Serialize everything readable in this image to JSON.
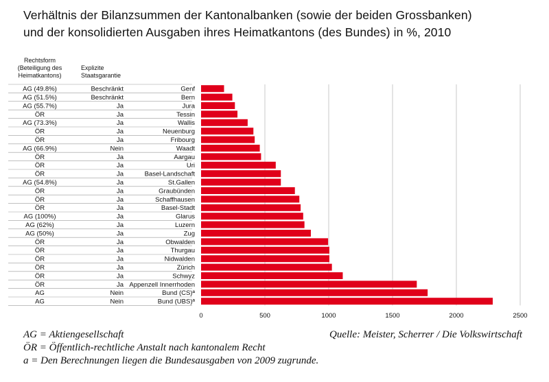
{
  "title": {
    "line1": "Verhältnis der Bilanzsummen der Kantonalbanken (sowie der beiden Grossbanken)",
    "line2": "und der konsolidierten Ausgaben ihres Heimatkantons (des Bundes) in %, 2010"
  },
  "headers": {
    "rechtsform": [
      "Rechtsform",
      "(Beteiligung des",
      "Heimatkantons)"
    ],
    "garantie": [
      "Explizite",
      "Staatsgarantie"
    ]
  },
  "chart_data": {
    "type": "bar",
    "orientation": "horizontal",
    "bar_color": "#e0001a",
    "grid": true,
    "xlim": [
      0,
      2500
    ],
    "xticks": [
      "0",
      "500",
      "1000",
      "1500",
      "2000",
      "2500"
    ],
    "rows": [
      {
        "name": "Genf",
        "rechtsform": "AG (49.8%)",
        "garantie": "Beschränkt",
        "value": 180
      },
      {
        "name": "Bern",
        "rechtsform": "AG (51.5%)",
        "garantie": "Beschränkt",
        "value": 245
      },
      {
        "name": "Jura",
        "rechtsform": "AG (55.7%)",
        "garantie": "Ja",
        "value": 265
      },
      {
        "name": "Tessin",
        "rechtsform": "ÖR",
        "garantie": "Ja",
        "value": 285
      },
      {
        "name": "Wallis",
        "rechtsform": "AG (73.3%)",
        "garantie": "Ja",
        "value": 365
      },
      {
        "name": "Neuenburg",
        "rechtsform": "ÖR",
        "garantie": "Ja",
        "value": 410
      },
      {
        "name": "Fribourg",
        "rechtsform": "ÖR",
        "garantie": "Ja",
        "value": 420
      },
      {
        "name": "Waadt",
        "rechtsform": "AG (66.9%)",
        "garantie": "Nein",
        "value": 460
      },
      {
        "name": "Aargau",
        "rechtsform": "ÖR",
        "garantie": "Ja",
        "value": 470
      },
      {
        "name": "Uri",
        "rechtsform": "ÖR",
        "garantie": "Ja",
        "value": 585
      },
      {
        "name": "Basel-Landschaft",
        "rechtsform": "ÖR",
        "garantie": "Ja",
        "value": 625
      },
      {
        "name": "St.Gallen",
        "rechtsform": "AG (54.8%)",
        "garantie": "Ja",
        "value": 625
      },
      {
        "name": "Graubünden",
        "rechtsform": "ÖR",
        "garantie": "Ja",
        "value": 735
      },
      {
        "name": "Schaffhausen",
        "rechtsform": "ÖR",
        "garantie": "Ja",
        "value": 770
      },
      {
        "name": "Basel-Stadt",
        "rechtsform": "ÖR",
        "garantie": "Ja",
        "value": 780
      },
      {
        "name": "Glarus",
        "rechtsform": "AG (100%)",
        "garantie": "Ja",
        "value": 800
      },
      {
        "name": "Luzern",
        "rechtsform": "AG (62%)",
        "garantie": "Ja",
        "value": 810
      },
      {
        "name": "Zug",
        "rechtsform": "AG (50%)",
        "garantie": "Ja",
        "value": 860
      },
      {
        "name": "Obwalden",
        "rechtsform": "ÖR",
        "garantie": "Ja",
        "value": 995
      },
      {
        "name": "Thurgau",
        "rechtsform": "ÖR",
        "garantie": "Ja",
        "value": 1005
      },
      {
        "name": "Nidwalden",
        "rechtsform": "ÖR",
        "garantie": "Ja",
        "value": 1005
      },
      {
        "name": "Zürich",
        "rechtsform": "ÖR",
        "garantie": "Ja",
        "value": 1025
      },
      {
        "name": "Schwyz",
        "rechtsform": "ÖR",
        "garantie": "Ja",
        "value": 1110
      },
      {
        "name": "Appenzell Innerrhoden",
        "rechtsform": "ÖR",
        "garantie": "Ja",
        "value": 1690
      },
      {
        "name": "Bund (CS)ª",
        "rechtsform": "AG",
        "garantie": "Nein",
        "value": 1775
      },
      {
        "name": "Bund (UBS)ª",
        "rechtsform": "AG",
        "garantie": "Nein",
        "value": 2285
      }
    ]
  },
  "footnotes": {
    "ag": "AG = Aktiengesellschaft",
    "oer": "ÖR = Öffentlich-rechtliche Anstalt nach kantonalem Recht",
    "a": "a = Den Berechnungen liegen die Bundesausgaben von 2009 zugrunde.",
    "source": "Quelle: Meister, Scherrer / Die Volkswirtschaft"
  }
}
